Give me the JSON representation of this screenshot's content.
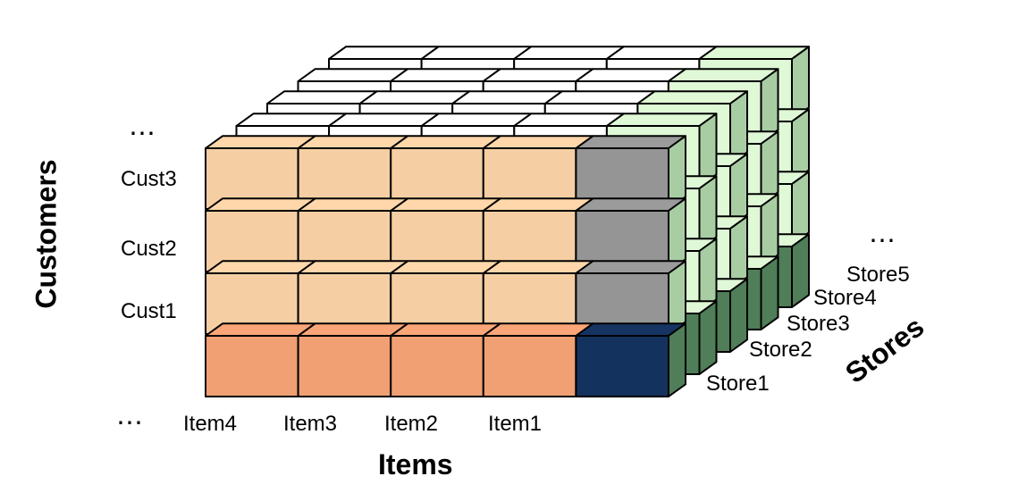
{
  "axes": {
    "items_title": "Items",
    "customers_title": "Customers",
    "stores_title": "Stores"
  },
  "items": [
    "Item4",
    "Item3",
    "Item2",
    "Item1"
  ],
  "customers": [
    "Cust3",
    "Cust2",
    "Cust1"
  ],
  "stores": [
    "Store1",
    "Store2",
    "Store3",
    "Store4",
    "Store5"
  ],
  "ellipsis": {
    "items": "⋯",
    "customers": "⋯",
    "stores": "⋯"
  },
  "colors": {
    "cell_data": "#F5CFA3",
    "cell_item_total": "#F0A073",
    "cell_customer_total": "#959595",
    "cell_grand_total": "#14325E",
    "store_light": "#DFF8D6",
    "store_mid": "#A9CDA3",
    "store_dark": "#4F7E58",
    "back_layer_front": "#FFFFFF",
    "edge": "#000000"
  }
}
